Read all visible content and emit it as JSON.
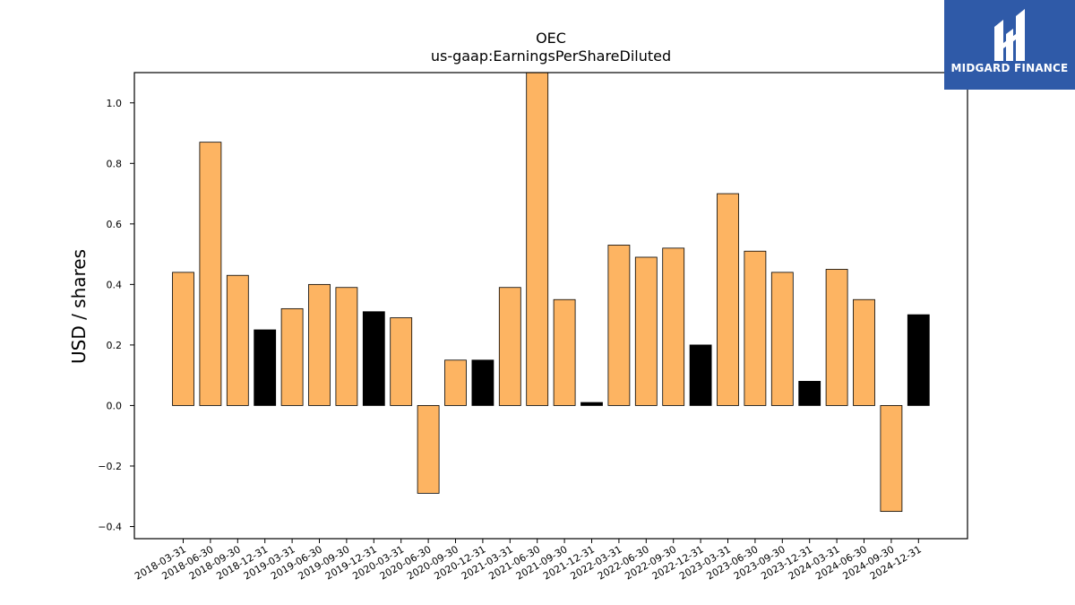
{
  "chart_data": {
    "type": "bar",
    "title": "OEC",
    "subtitle": "us-gaap:EarningsPerShareDiluted",
    "xlabel": "",
    "ylabel": "USD / shares",
    "ylim": [
      -0.44,
      1.1
    ],
    "yticks": [
      -0.4,
      -0.2,
      0.0,
      0.2,
      0.4,
      0.6,
      0.8,
      1.0
    ],
    "ytick_labels": [
      "−0.4",
      "−0.2",
      "0.0",
      "0.2",
      "0.4",
      "0.6",
      "0.8",
      "1.0"
    ],
    "grid": false,
    "categories": [
      "2018-03-31",
      "2018-06-30",
      "2018-09-30",
      "2018-12-31",
      "2019-03-31",
      "2019-06-30",
      "2019-09-30",
      "2019-12-31",
      "2020-03-31",
      "2020-06-30",
      "2020-09-30",
      "2020-12-31",
      "2021-03-31",
      "2021-06-30",
      "2021-09-30",
      "2021-12-31",
      "2022-03-31",
      "2022-06-30",
      "2022-09-30",
      "2022-12-31",
      "2023-03-31",
      "2023-06-30",
      "2023-09-30",
      "2023-12-31",
      "2024-03-31",
      "2024-06-30",
      "2024-09-30",
      "2024-12-31"
    ],
    "values": [
      0.44,
      0.87,
      0.43,
      0.25,
      0.32,
      0.4,
      0.39,
      0.31,
      0.29,
      -0.29,
      0.15,
      0.15,
      0.39,
      1.15,
      0.35,
      0.01,
      0.53,
      0.49,
      0.52,
      0.2,
      0.7,
      0.51,
      0.44,
      0.08,
      0.45,
      0.35,
      -0.35,
      0.3
    ],
    "bar_colors": [
      "#fdb462",
      "#fdb462",
      "#fdb462",
      "#000000",
      "#fdb462",
      "#fdb462",
      "#fdb462",
      "#000000",
      "#fdb462",
      "#fdb462",
      "#fdb462",
      "#000000",
      "#fdb462",
      "#fdb462",
      "#fdb462",
      "#000000",
      "#fdb462",
      "#fdb462",
      "#fdb462",
      "#000000",
      "#fdb462",
      "#fdb462",
      "#fdb462",
      "#000000",
      "#fdb462",
      "#fdb462",
      "#fdb462",
      "#000000"
    ],
    "colors": {
      "quarter": "#fdb462",
      "year_end": "#000000",
      "edge": "#000000"
    }
  },
  "logo": {
    "text": "MIDGARD FINANCE",
    "background": "#2f5aa8"
  }
}
